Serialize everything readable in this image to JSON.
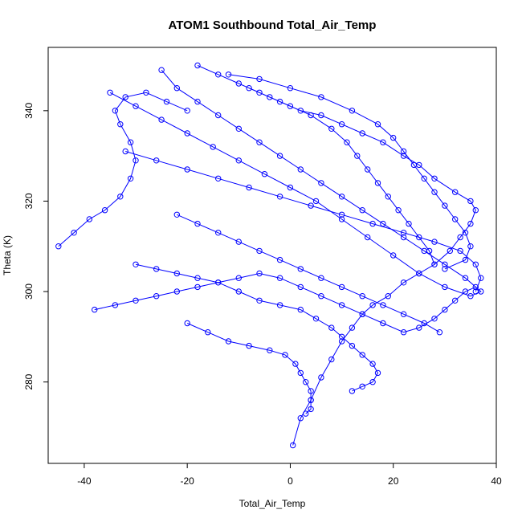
{
  "chart_data": {
    "type": "line",
    "title": "ATOM1 Southbound Total_Air_Temp",
    "xlabel": "Total_Air_Temp",
    "ylabel": "Theta (K)",
    "xlim": [
      -47,
      40
    ],
    "ylim": [
      262,
      354
    ],
    "xticks": [
      -40,
      -20,
      0,
      20,
      40
    ],
    "yticks": [
      280,
      300,
      320,
      340
    ],
    "xtick_labels": [
      "-40",
      "-20",
      "0",
      "20",
      "40"
    ],
    "ytick_labels": [
      "280",
      "300",
      "320",
      "340"
    ],
    "grid": false,
    "legend": "none",
    "marker": "open-circle",
    "color": "#0000ff",
    "series": [
      {
        "values": [
          [
            0.5,
            266
          ],
          [
            2,
            272
          ],
          [
            4,
            276
          ],
          [
            6,
            281
          ],
          [
            8,
            285
          ],
          [
            10,
            289
          ],
          [
            12,
            292
          ],
          [
            14,
            295
          ],
          [
            16,
            297
          ],
          [
            19,
            299
          ],
          [
            22,
            302
          ],
          [
            25,
            304
          ],
          [
            28,
            306
          ],
          [
            31,
            309
          ],
          [
            33,
            312
          ],
          [
            35,
            315
          ],
          [
            36,
            318
          ],
          [
            35,
            320
          ],
          [
            32,
            322
          ],
          [
            28,
            325
          ],
          [
            25,
            328
          ],
          [
            22,
            330
          ],
          [
            18,
            333
          ],
          [
            14,
            335
          ],
          [
            10,
            337
          ],
          [
            6,
            339
          ],
          [
            2,
            340
          ],
          [
            -2,
            342
          ],
          [
            -6,
            344
          ],
          [
            -10,
            346
          ],
          [
            -14,
            348
          ],
          [
            -18,
            350
          ]
        ]
      },
      {
        "values": [
          [
            -35,
            344
          ],
          [
            -30,
            341
          ],
          [
            -25,
            338
          ],
          [
            -20,
            335
          ],
          [
            -15,
            332
          ],
          [
            -10,
            329
          ],
          [
            -5,
            326
          ],
          [
            0,
            323
          ],
          [
            5,
            320
          ],
          [
            10,
            316
          ],
          [
            15,
            312
          ],
          [
            20,
            308
          ],
          [
            25,
            304
          ],
          [
            30,
            301
          ],
          [
            35,
            299
          ],
          [
            37,
            300
          ],
          [
            34,
            303
          ],
          [
            30,
            306
          ],
          [
            26,
            309
          ],
          [
            22,
            312
          ],
          [
            18,
            315
          ],
          [
            14,
            318
          ],
          [
            10,
            321
          ],
          [
            6,
            324
          ],
          [
            2,
            327
          ],
          [
            -2,
            330
          ],
          [
            -6,
            333
          ],
          [
            -10,
            336
          ],
          [
            -14,
            339
          ],
          [
            -18,
            342
          ],
          [
            -22,
            345
          ],
          [
            -25,
            349
          ]
        ]
      },
      {
        "values": [
          [
            -45,
            310
          ],
          [
            -42,
            313
          ],
          [
            -39,
            316
          ],
          [
            -36,
            318
          ],
          [
            -33,
            321
          ],
          [
            -31,
            325
          ],
          [
            -30,
            329
          ],
          [
            -31,
            333
          ],
          [
            -33,
            337
          ],
          [
            -34,
            340
          ],
          [
            -32,
            343
          ],
          [
            -28,
            344
          ],
          [
            -24,
            342
          ],
          [
            -20,
            340
          ]
        ]
      },
      {
        "values": [
          [
            -38,
            296
          ],
          [
            -34,
            297
          ],
          [
            -30,
            298
          ],
          [
            -26,
            299
          ],
          [
            -22,
            300
          ],
          [
            -18,
            301
          ],
          [
            -14,
            302
          ],
          [
            -10,
            303
          ],
          [
            -6,
            304
          ],
          [
            -2,
            303
          ],
          [
            2,
            301
          ],
          [
            6,
            299
          ],
          [
            10,
            297
          ],
          [
            14,
            295
          ],
          [
            18,
            293
          ],
          [
            22,
            291
          ],
          [
            25,
            292
          ],
          [
            28,
            294
          ],
          [
            30,
            296
          ],
          [
            32,
            298
          ],
          [
            34,
            300
          ],
          [
            36,
            301
          ]
        ]
      },
      {
        "values": [
          [
            -30,
            306
          ],
          [
            -26,
            305
          ],
          [
            -22,
            304
          ],
          [
            -18,
            303
          ],
          [
            -14,
            302
          ],
          [
            -10,
            300
          ],
          [
            -6,
            298
          ],
          [
            -2,
            297
          ],
          [
            2,
            296
          ],
          [
            5,
            294
          ],
          [
            8,
            292
          ],
          [
            10,
            290
          ],
          [
            12,
            288
          ],
          [
            14,
            286
          ],
          [
            16,
            284
          ],
          [
            17,
            282
          ],
          [
            16,
            280
          ],
          [
            14,
            279
          ],
          [
            12,
            278
          ]
        ]
      },
      {
        "values": [
          [
            -20,
            293
          ],
          [
            -16,
            291
          ],
          [
            -12,
            289
          ],
          [
            -8,
            288
          ],
          [
            -4,
            287
          ],
          [
            -1,
            286
          ],
          [
            1,
            284
          ],
          [
            2,
            282
          ],
          [
            3,
            280
          ],
          [
            4,
            278
          ],
          [
            4,
            276
          ],
          [
            4,
            274
          ],
          [
            3,
            273
          ]
        ]
      },
      {
        "values": [
          [
            -32,
            331
          ],
          [
            -26,
            329
          ],
          [
            -20,
            327
          ],
          [
            -14,
            325
          ],
          [
            -8,
            323
          ],
          [
            -2,
            321
          ],
          [
            4,
            319
          ],
          [
            10,
            317
          ],
          [
            16,
            315
          ],
          [
            22,
            313
          ],
          [
            28,
            311
          ],
          [
            33,
            309
          ],
          [
            36,
            306
          ],
          [
            37,
            303
          ],
          [
            36,
            300
          ]
        ]
      },
      {
        "values": [
          [
            -12,
            348
          ],
          [
            -6,
            347
          ],
          [
            0,
            345
          ],
          [
            6,
            343
          ],
          [
            12,
            340
          ],
          [
            17,
            337
          ],
          [
            20,
            334
          ],
          [
            22,
            331
          ],
          [
            24,
            328
          ],
          [
            26,
            325
          ],
          [
            28,
            322
          ],
          [
            30,
            319
          ],
          [
            32,
            316
          ],
          [
            34,
            313
          ],
          [
            35,
            310
          ],
          [
            34,
            307
          ],
          [
            30,
            305
          ]
        ]
      },
      {
        "values": [
          [
            -22,
            317
          ],
          [
            -18,
            315
          ],
          [
            -14,
            313
          ],
          [
            -10,
            311
          ],
          [
            -6,
            309
          ],
          [
            -2,
            307
          ],
          [
            2,
            305
          ],
          [
            6,
            303
          ],
          [
            10,
            301
          ],
          [
            14,
            299
          ],
          [
            18,
            297
          ],
          [
            22,
            295
          ],
          [
            26,
            293
          ],
          [
            29,
            291
          ]
        ]
      },
      {
        "values": [
          [
            -8,
            345
          ],
          [
            -4,
            343
          ],
          [
            0,
            341
          ],
          [
            4,
            339
          ],
          [
            8,
            336
          ],
          [
            11,
            333
          ],
          [
            13,
            330
          ],
          [
            15,
            327
          ],
          [
            17,
            324
          ],
          [
            19,
            321
          ],
          [
            21,
            318
          ],
          [
            23,
            315
          ],
          [
            25,
            312
          ],
          [
            27,
            309
          ],
          [
            28,
            306
          ]
        ]
      }
    ]
  }
}
